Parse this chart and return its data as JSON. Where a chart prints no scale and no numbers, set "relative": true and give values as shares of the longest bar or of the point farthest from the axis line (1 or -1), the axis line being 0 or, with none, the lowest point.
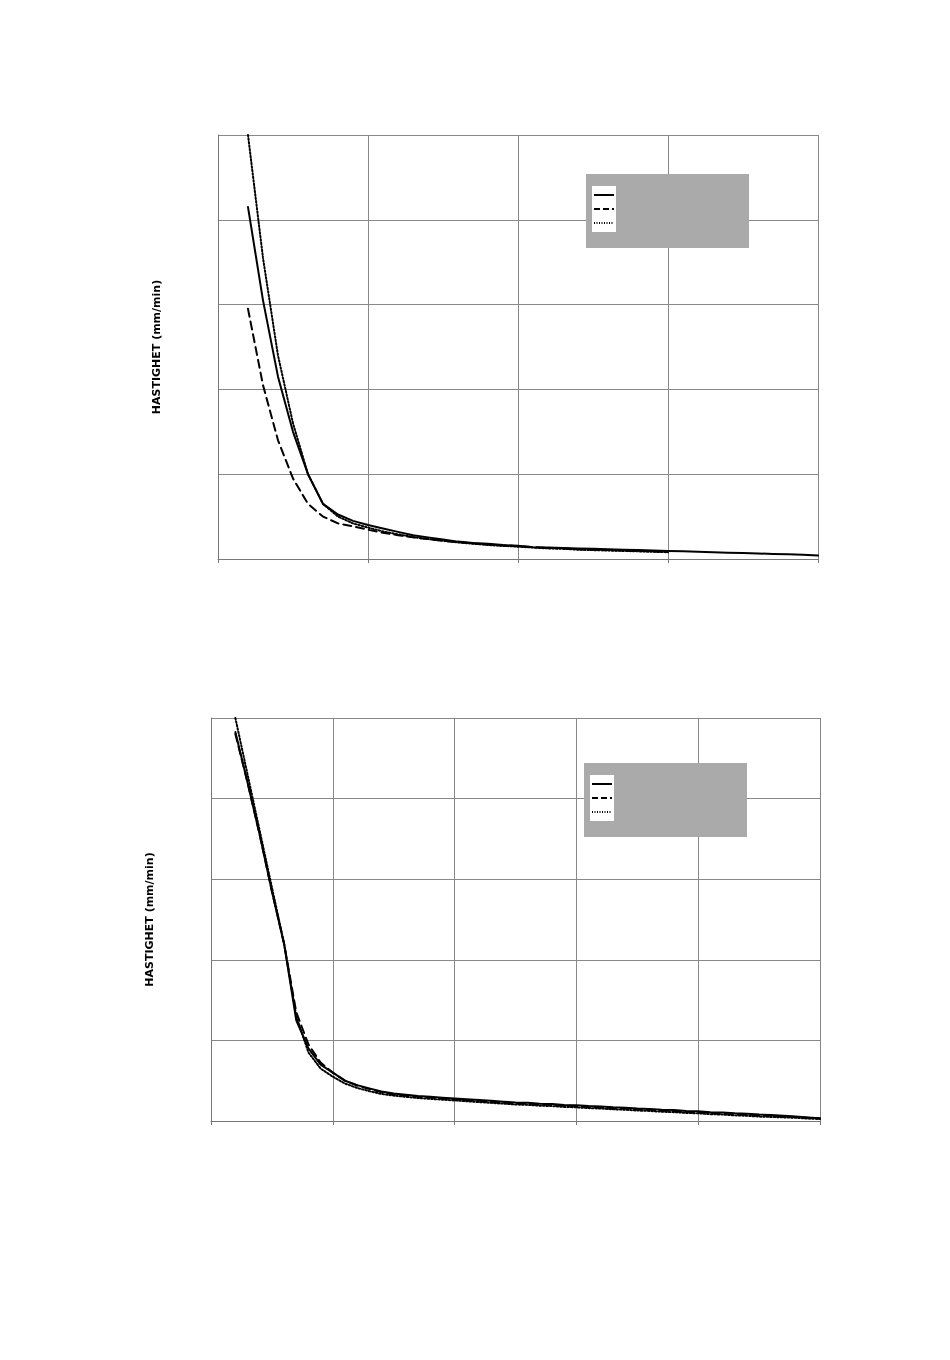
{
  "chart_data": [
    {
      "type": "line",
      "ylabel": "HASTIGHET (mm/min)",
      "relative": true,
      "grid": true,
      "marker": "none",
      "categories": [
        null,
        null,
        null,
        null,
        null,
        null,
        null,
        null,
        null,
        null,
        null,
        null,
        null,
        null,
        null,
        null,
        null,
        null,
        null,
        null,
        null,
        null,
        null,
        null,
        null,
        null,
        null,
        null,
        null,
        null,
        null,
        null,
        null,
        null,
        null,
        null,
        null,
        null,
        null,
        null,
        null
      ],
      "series": [
        {
          "color": "#000000",
          "line_style": "solid",
          "values": [
            null,
            null,
            0.83,
            0.61,
            0.43,
            0.3,
            0.2,
            0.13,
            0.105,
            0.09,
            0.08,
            0.072,
            0.064,
            0.056,
            0.051,
            0.046,
            0.041,
            0.038,
            0.036,
            0.033,
            0.031,
            0.028,
            0.027,
            0.026,
            0.025,
            0.024,
            0.023,
            0.022,
            0.021,
            0.02,
            0.019,
            0.018,
            0.017,
            0.016,
            0.015,
            0.014,
            0.013,
            0.012,
            0.011,
            0.01,
            0.008
          ]
        },
        {
          "color": "#000000",
          "line_style": "dashed",
          "values": [
            null,
            null,
            0.59,
            0.41,
            0.28,
            0.19,
            0.13,
            0.1,
            0.084,
            0.077,
            0.069,
            0.062,
            0.056,
            0.051,
            0.047,
            0.043,
            0.04,
            0.037,
            0.034,
            0.032,
            0.03,
            0.028,
            0.026,
            0.025,
            0.023,
            0.022,
            0.021,
            0.02,
            0.019,
            0.018,
            0.017,
            null,
            null,
            null,
            null,
            null,
            null,
            null,
            null,
            null,
            null
          ]
        },
        {
          "color": "#000000",
          "line_style": "dotted",
          "values": [
            null,
            null,
            1.0,
            0.71,
            0.48,
            0.32,
            0.2,
            0.13,
            0.1,
            0.084,
            0.074,
            0.065,
            0.058,
            0.052,
            0.047,
            0.043,
            0.039,
            0.036,
            0.033,
            0.031,
            0.029,
            0.027,
            0.025,
            0.024,
            0.022,
            0.021,
            0.02,
            0.019,
            0.018,
            0.017,
            0.016,
            null,
            null,
            null,
            null,
            null,
            null,
            null,
            null,
            null,
            null
          ]
        }
      ]
    },
    {
      "type": "line",
      "ylabel": "HASTIGHET (mm/min)",
      "relative": true,
      "grid": true,
      "marker": "none",
      "categories": [
        null,
        null,
        null,
        null,
        null,
        null,
        null,
        null,
        null,
        null,
        null,
        null,
        null,
        null,
        null,
        null,
        null,
        null,
        null,
        null,
        null,
        null,
        null,
        null,
        null,
        null,
        null,
        null,
        null,
        null,
        null,
        null,
        null,
        null,
        null,
        null,
        null,
        null,
        null,
        null,
        null,
        null,
        null,
        null,
        null,
        null,
        null,
        null,
        null,
        null,
        null
      ],
      "series": [
        {
          "color": "#000000",
          "line_style": "solid",
          "values": [
            null,
            null,
            0.965,
            0.84,
            0.71,
            0.57,
            0.44,
            0.25,
            0.18,
            0.14,
            0.12,
            0.1,
            0.089,
            0.081,
            0.073,
            0.068,
            0.065,
            0.062,
            0.06,
            0.058,
            0.056,
            0.054,
            0.052,
            0.05,
            0.048,
            0.046,
            0.045,
            0.043,
            0.042,
            0.04,
            0.039,
            0.037,
            0.036,
            0.034,
            0.033,
            0.031,
            0.03,
            0.028,
            0.027,
            0.025,
            0.024,
            0.022,
            0.021,
            0.019,
            0.018,
            0.016,
            0.015,
            0.013,
            0.011,
            0.009,
            0.007
          ]
        },
        {
          "color": "#000000",
          "line_style": "dashed",
          "values": [
            null,
            null,
            0.96,
            0.84,
            0.71,
            0.57,
            0.44,
            0.27,
            0.19,
            0.145,
            0.12,
            0.1,
            0.088,
            0.079,
            0.071,
            0.066,
            0.063,
            0.06,
            0.058,
            0.056,
            0.054,
            0.052,
            0.05,
            0.048,
            0.046,
            0.044,
            0.043,
            0.041,
            0.04,
            0.038,
            0.037,
            0.035,
            0.034,
            0.032,
            0.031,
            0.029,
            0.028,
            0.026,
            0.025,
            0.023,
            0.022,
            0.02,
            0.019,
            0.017,
            0.016,
            0.014,
            0.013,
            0.011,
            0.01,
            0.008,
            0.006
          ]
        },
        {
          "color": "#000000",
          "line_style": "dotted",
          "values": [
            null,
            null,
            1.0,
            0.86,
            0.72,
            0.58,
            0.44,
            0.26,
            0.17,
            0.13,
            0.11,
            0.093,
            0.082,
            0.074,
            0.067,
            0.063,
            0.06,
            0.057,
            0.055,
            0.053,
            0.051,
            0.049,
            0.047,
            0.045,
            0.043,
            0.041,
            0.04,
            0.038,
            0.037,
            0.035,
            0.034,
            0.032,
            0.031,
            0.029,
            0.028,
            0.026,
            0.025,
            0.023,
            0.022,
            0.02,
            0.019,
            0.017,
            0.016,
            0.014,
            0.013,
            0.011,
            0.01,
            0.009,
            0.008,
            0.006,
            0.005
          ]
        }
      ]
    }
  ]
}
